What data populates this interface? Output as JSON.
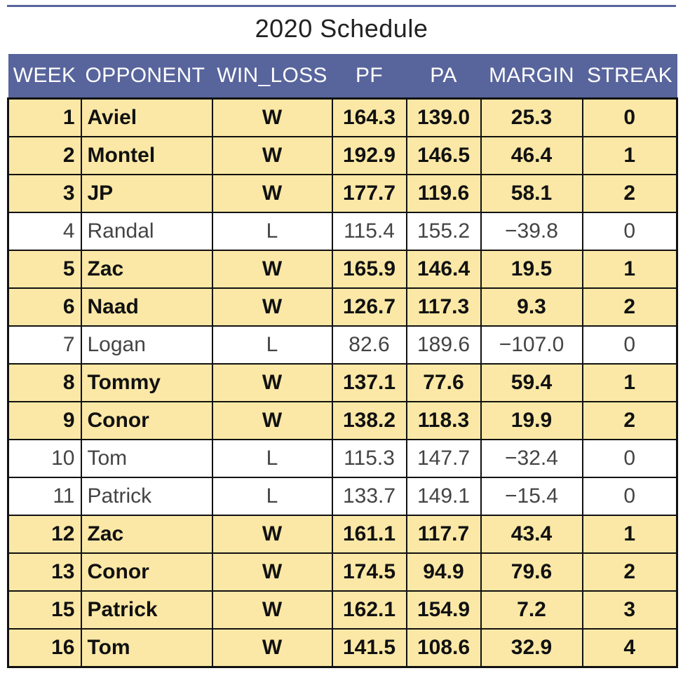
{
  "title": "2020 Schedule",
  "colors": {
    "header_bg": "#58649c",
    "win_row": "#fbe8a6",
    "loss_row": "#ffffff"
  },
  "chart_data": {
    "type": "table",
    "title": "2020 Schedule",
    "columns": [
      "WEEK",
      "OPPONENT",
      "WIN_LOSS",
      "PF",
      "PA",
      "MARGIN",
      "STREAK"
    ],
    "rows": [
      [
        "1",
        "Aviel",
        "W",
        "164.3",
        "139.0",
        "25.3",
        "0"
      ],
      [
        "2",
        "Montel",
        "W",
        "192.9",
        "146.5",
        "46.4",
        "1"
      ],
      [
        "3",
        "JP",
        "W",
        "177.7",
        "119.6",
        "58.1",
        "2"
      ],
      [
        "4",
        "Randal",
        "L",
        "115.4",
        "155.2",
        "−39.8",
        "0"
      ],
      [
        "5",
        "Zac",
        "W",
        "165.9",
        "146.4",
        "19.5",
        "1"
      ],
      [
        "6",
        "Naad",
        "W",
        "126.7",
        "117.3",
        "9.3",
        "2"
      ],
      [
        "7",
        "Logan",
        "L",
        "82.6",
        "189.6",
        "−107.0",
        "0"
      ],
      [
        "8",
        "Tommy",
        "W",
        "137.1",
        "77.6",
        "59.4",
        "1"
      ],
      [
        "9",
        "Conor",
        "W",
        "138.2",
        "118.3",
        "19.9",
        "2"
      ],
      [
        "10",
        "Tom",
        "L",
        "115.3",
        "147.7",
        "−32.4",
        "0"
      ],
      [
        "11",
        "Patrick",
        "L",
        "133.7",
        "149.1",
        "−15.4",
        "0"
      ],
      [
        "12",
        "Zac",
        "W",
        "161.1",
        "117.7",
        "43.4",
        "1"
      ],
      [
        "13",
        "Conor",
        "W",
        "174.5",
        "94.9",
        "79.6",
        "2"
      ],
      [
        "15",
        "Patrick",
        "W",
        "162.1",
        "154.9",
        "7.2",
        "3"
      ],
      [
        "16",
        "Tom",
        "W",
        "141.5",
        "108.6",
        "32.9",
        "4"
      ]
    ]
  }
}
